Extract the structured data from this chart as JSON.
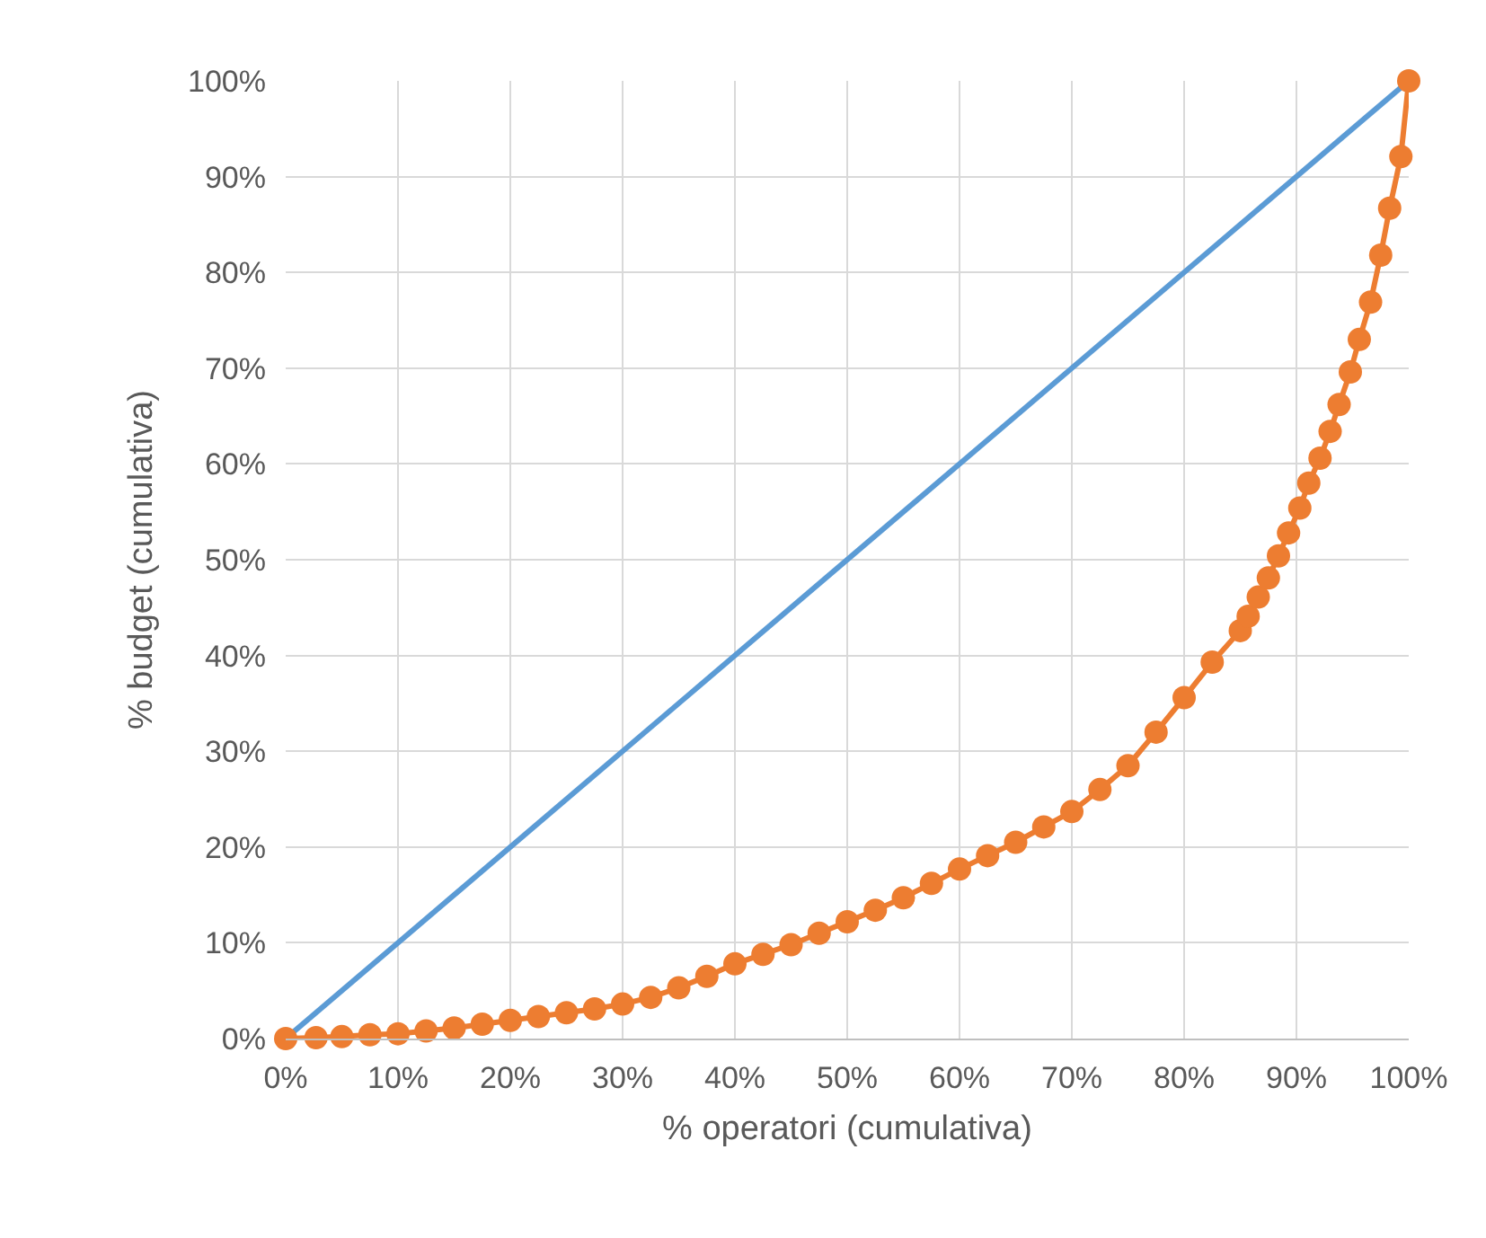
{
  "chart_data": {
    "type": "line",
    "xlabel": "% operatori (cumulativa)",
    "ylabel": "% budget (cumulativa)",
    "xlim": [
      0,
      100
    ],
    "ylim": [
      0,
      100
    ],
    "xticks": [
      {
        "value": 0,
        "label": "0%"
      },
      {
        "value": 10,
        "label": "10%"
      },
      {
        "value": 20,
        "label": "20%"
      },
      {
        "value": 30,
        "label": "30%"
      },
      {
        "value": 40,
        "label": "40%"
      },
      {
        "value": 50,
        "label": "50%"
      },
      {
        "value": 60,
        "label": "60%"
      },
      {
        "value": 70,
        "label": "70%"
      },
      {
        "value": 80,
        "label": "80%"
      },
      {
        "value": 90,
        "label": "90%"
      },
      {
        "value": 100,
        "label": "100%"
      }
    ],
    "yticks": [
      {
        "value": 0,
        "label": "0%"
      },
      {
        "value": 10,
        "label": "10%"
      },
      {
        "value": 20,
        "label": "20%"
      },
      {
        "value": 30,
        "label": "30%"
      },
      {
        "value": 40,
        "label": "40%"
      },
      {
        "value": 50,
        "label": "50%"
      },
      {
        "value": 60,
        "label": "60%"
      },
      {
        "value": 70,
        "label": "70%"
      },
      {
        "value": 80,
        "label": "80%"
      },
      {
        "value": 90,
        "label": "90%"
      },
      {
        "value": 100,
        "label": "100%"
      }
    ],
    "grid": true,
    "series": [
      {
        "color": "#5b9bd5",
        "marker": "none",
        "x": [
          0,
          100
        ],
        "values": [
          0,
          100
        ]
      },
      {
        "color": "#ed7d31",
        "marker": "circle",
        "x": [
          0,
          2.7,
          5,
          7.5,
          10,
          12.5,
          15,
          17.5,
          20,
          22.5,
          25,
          27.5,
          30,
          32.5,
          35,
          37.5,
          40,
          42.5,
          45,
          47.5,
          50,
          52.5,
          55,
          57.5,
          60,
          62.5,
          65,
          67.5,
          70,
          72.5,
          75,
          77.5,
          80,
          82.5,
          85,
          85.7,
          86.6,
          87.5,
          88.4,
          89.3,
          90.3,
          91.1,
          92.1,
          93,
          93.8,
          94.8,
          95.6,
          96.6,
          97.5,
          98.3,
          99.3,
          100
        ],
        "values": [
          0,
          0.1,
          0.2,
          0.4,
          0.5,
          0.8,
          1.1,
          1.5,
          1.9,
          2.3,
          2.7,
          3.1,
          3.6,
          4.3,
          5.3,
          6.5,
          7.8,
          8.8,
          9.8,
          11,
          12.2,
          13.4,
          14.7,
          16.2,
          17.7,
          19.1,
          20.5,
          22.1,
          23.7,
          26,
          28.5,
          32,
          35.6,
          39.3,
          42.6,
          44.1,
          46.1,
          48.1,
          50.4,
          52.8,
          55.4,
          58,
          60.6,
          63.4,
          66.2,
          69.6,
          73,
          76.9,
          81.8,
          86.7,
          92.1,
          100
        ]
      }
    ]
  }
}
